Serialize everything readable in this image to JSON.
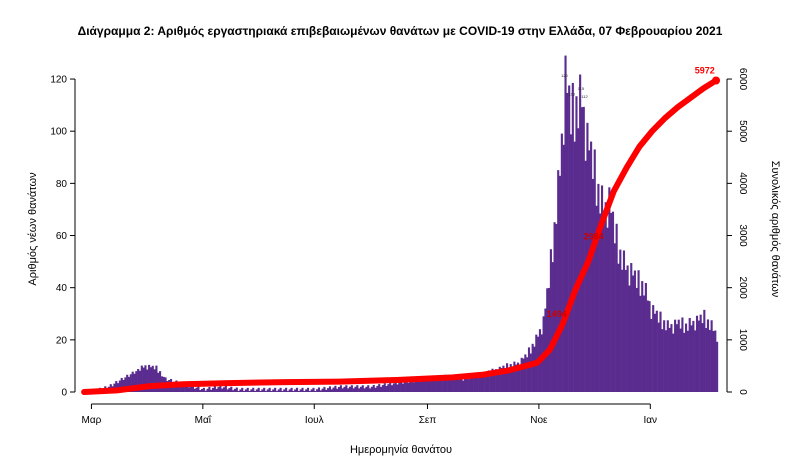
{
  "chart_data": {
    "type": "bar",
    "title": "Διάγραμμα 2: Αριθμός εργαστηριακά επιβεβαιωμένων θανάτων με COVID-19 στην Ελλάδα, 07 Φεβρουαρίου 2021",
    "xlabel": "Ημερομηνία θανάτου",
    "ylabel": "Αριθμός νέων θανάτων",
    "ylabel_right": "Συνολικός αριθμός θανάτων",
    "x_tick_labels": [
      "Μαρ",
      "Μαΐ",
      "Ιουλ",
      "Σεπ",
      "Νοε",
      "Ιαν"
    ],
    "y_ticks": [
      0,
      20,
      40,
      60,
      80,
      100,
      120
    ],
    "y2_ticks": [
      0,
      1000,
      2000,
      3000,
      4000,
      5000,
      6000
    ],
    "ylim": [
      0,
      125
    ],
    "y2lim": [
      0,
      6250
    ],
    "colors": {
      "bars": "#5b2c8f",
      "cumulative": "#ff0000"
    },
    "series": [
      {
        "name": "Αριθμός νέων θανάτων",
        "type": "bar",
        "x": [
          "2020-02-26",
          "2020-03-05",
          "2020-03-10",
          "2020-03-15",
          "2020-03-20",
          "2020-03-25",
          "2020-03-30",
          "2020-04-05",
          "2020-04-10",
          "2020-04-15",
          "2020-04-20",
          "2020-04-25",
          "2020-05-01",
          "2020-05-10",
          "2020-05-20",
          "2020-06-01",
          "2020-06-15",
          "2020-07-01",
          "2020-07-15",
          "2020-08-01",
          "2020-08-10",
          "2020-08-20",
          "2020-09-01",
          "2020-09-10",
          "2020-09-20",
          "2020-10-01",
          "2020-10-10",
          "2020-10-20",
          "2020-10-25",
          "2020-10-30",
          "2020-11-03",
          "2020-11-06",
          "2020-11-09",
          "2020-11-12",
          "2020-11-15",
          "2020-11-18",
          "2020-11-21",
          "2020-11-24",
          "2020-11-27",
          "2020-11-30",
          "2020-12-03",
          "2020-12-06",
          "2020-12-09",
          "2020-12-12",
          "2020-12-15",
          "2020-12-18",
          "2020-12-21",
          "2020-12-24",
          "2020-12-28",
          "2021-01-01",
          "2021-01-05",
          "2021-01-10",
          "2021-01-15",
          "2021-01-20",
          "2021-01-25",
          "2021-01-30",
          "2021-02-03",
          "2021-02-06"
        ],
        "values": [
          0,
          1,
          2,
          4,
          6,
          8,
          10,
          9,
          5,
          4,
          3,
          2,
          1,
          2,
          1,
          1,
          1,
          1,
          2,
          2,
          3,
          4,
          5,
          6,
          5,
          7,
          9,
          11,
          14,
          20,
          27,
          42,
          62,
          85,
          120,
          104,
          108,
          112,
          96,
          86,
          76,
          70,
          73,
          60,
          52,
          48,
          46,
          42,
          40,
          32,
          28,
          25,
          26,
          25,
          27,
          28,
          25,
          22
        ]
      },
      {
        "name": "Συνολικός αριθμός θανάτων",
        "type": "line",
        "x": [
          "2020-02-26",
          "2020-03-15",
          "2020-04-01",
          "2020-04-20",
          "2020-05-15",
          "2020-06-15",
          "2020-07-15",
          "2020-08-15",
          "2020-09-15",
          "2020-10-01",
          "2020-10-15",
          "2020-10-31",
          "2020-11-07",
          "2020-11-14",
          "2020-11-21",
          "2020-11-28",
          "2020-12-05",
          "2020-12-12",
          "2020-12-19",
          "2020-12-26",
          "2021-01-02",
          "2021-01-09",
          "2021-01-16",
          "2021-01-23",
          "2021-01-30",
          "2021-02-06"
        ],
        "values": [
          0,
          30,
          110,
          150,
          170,
          190,
          200,
          230,
          280,
          330,
          410,
          560,
          810,
          1300,
          1960,
          2500,
          3200,
          3850,
          4300,
          4700,
          5000,
          5250,
          5460,
          5640,
          5820,
          5972
        ]
      }
    ],
    "annotations": [
      "5972",
      "2984",
      "1494"
    ],
    "bar_value_labels": [
      "120",
      "113",
      "115",
      "112"
    ]
  }
}
